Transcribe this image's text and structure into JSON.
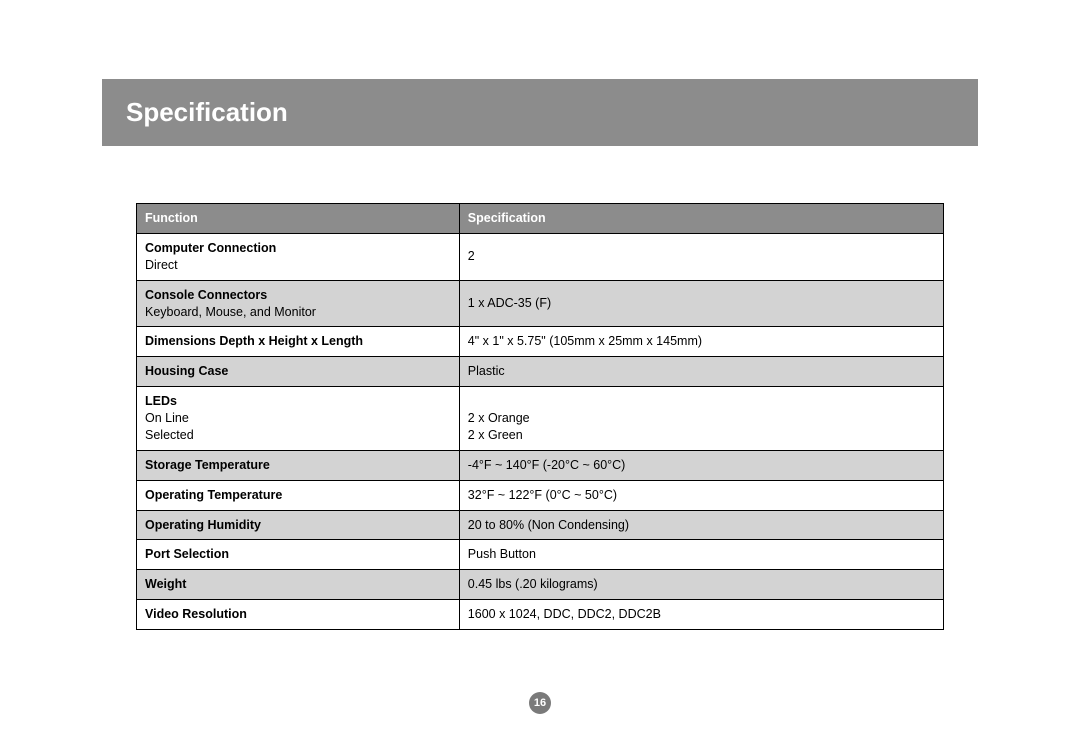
{
  "page": {
    "title": "Specification",
    "page_number": "16"
  },
  "colors": {
    "title_bar_bg": "#8c8c8c",
    "header_row_bg": "#8c8c8c",
    "alt_row_bg": "#d3d3d3",
    "page_number_bg": "#7a7a7a",
    "border": "#000000",
    "text": "#000000"
  },
  "table": {
    "columns": [
      "Function",
      "Specification"
    ],
    "column_widths_pct": [
      40,
      60
    ],
    "rows": [
      {
        "func_title": "Computer Connection",
        "func_sub": "Direct",
        "spec": "2",
        "alt": false
      },
      {
        "func_title": "Console Connectors",
        "func_sub": "Keyboard, Mouse, and Monitor",
        "spec": "1 x ADC-35 (F)",
        "alt": true
      },
      {
        "func_title": "Dimensions Depth x Height x Length",
        "func_sub": "",
        "spec": "4\" x 1\" x 5.75\" (105mm x 25mm x 145mm)",
        "alt": false
      },
      {
        "func_title": "Housing Case",
        "func_sub": "",
        "spec": "Plastic",
        "alt": true
      },
      {
        "func_title": "LEDs",
        "func_sub_lines": [
          "On Line",
          "Selected"
        ],
        "spec_lines": [
          "",
          "2 x Orange",
          "2 x Green"
        ],
        "alt": false
      },
      {
        "func_title": "Storage Temperature",
        "func_sub": "",
        "spec": "-4°F ~ 140°F (-20°C ~ 60°C)",
        "alt": true
      },
      {
        "func_title": "Operating Temperature",
        "func_sub": "",
        "spec": "32°F ~ 122°F (0°C ~ 50°C)",
        "alt": false
      },
      {
        "func_title": "Operating Humidity",
        "func_sub": "",
        "spec": "20 to 80% (Non Condensing)",
        "alt": true
      },
      {
        "func_title": "Port Selection",
        "func_sub": "",
        "spec": "Push Button",
        "alt": false
      },
      {
        "func_title": "Weight",
        "func_sub": "",
        "spec": "0.45 lbs (.20 kilograms)",
        "alt": true
      },
      {
        "func_title": "Video Resolution",
        "func_sub": "",
        "spec": "1600 x 1024, DDC, DDC2, DDC2B",
        "alt": false
      }
    ]
  }
}
